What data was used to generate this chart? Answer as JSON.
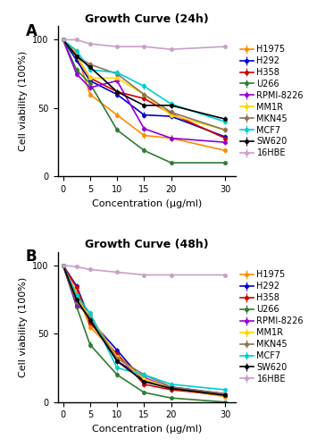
{
  "x": [
    0,
    2.5,
    5,
    10,
    15,
    20,
    30
  ],
  "title_A": "Growth Curve (24h)",
  "title_B": "Growth Curve (48h)",
  "xlabel": "Concentration (μg/ml)",
  "ylabel": "Cell viability (100%)",
  "label_A": "A",
  "label_B": "B",
  "series": [
    {
      "name": "H1975",
      "color": "#FF8C00"
    },
    {
      "name": "H292",
      "color": "#0000CD"
    },
    {
      "name": "H358",
      "color": "#CC0000"
    },
    {
      "name": "U266",
      "color": "#2E7D32"
    },
    {
      "name": "RPMI-8226",
      "color": "#9400D3"
    },
    {
      "name": "MM1R",
      "color": "#FFD700"
    },
    {
      "name": "MKN45",
      "color": "#8B7355"
    },
    {
      "name": "MCF7",
      "color": "#00CED1"
    },
    {
      "name": "SW620",
      "color": "#000000"
    },
    {
      "name": "16HBE",
      "color": "#C8A0C8"
    }
  ],
  "data_24h": {
    "H1975": [
      100,
      90,
      60,
      45,
      30,
      28,
      19
    ],
    "H292": [
      100,
      85,
      70,
      60,
      45,
      44,
      29
    ],
    "H358": [
      100,
      88,
      72,
      62,
      57,
      46,
      28
    ],
    "U266": [
      100,
      78,
      68,
      34,
      19,
      10,
      10
    ],
    "RPMI-8226": [
      100,
      75,
      65,
      70,
      35,
      28,
      25
    ],
    "MM1R": [
      100,
      88,
      72,
      72,
      60,
      45,
      34
    ],
    "MKN45": [
      100,
      88,
      82,
      75,
      60,
      47,
      34
    ],
    "MCF7": [
      100,
      92,
      78,
      76,
      66,
      53,
      40
    ],
    "SW620": [
      100,
      88,
      80,
      62,
      52,
      52,
      42
    ],
    "16HBE": [
      100,
      100,
      97,
      95,
      95,
      93,
      95
    ]
  },
  "data_48h": {
    "H1975": [
      100,
      80,
      55,
      35,
      16,
      10,
      4
    ],
    "H292": [
      100,
      85,
      60,
      38,
      15,
      11,
      6
    ],
    "H358": [
      100,
      84,
      58,
      35,
      13,
      9,
      5
    ],
    "U266": [
      100,
      70,
      42,
      20,
      7,
      3,
      0
    ],
    "RPMI-8226": [
      100,
      71,
      64,
      30,
      18,
      10,
      6
    ],
    "MM1R": [
      100,
      75,
      63,
      33,
      17,
      10,
      5
    ],
    "MKN45": [
      100,
      73,
      62,
      32,
      20,
      11,
      6
    ],
    "MCF7": [
      100,
      78,
      65,
      25,
      20,
      13,
      9
    ],
    "SW620": [
      100,
      75,
      60,
      30,
      15,
      10,
      5
    ],
    "16HBE": [
      100,
      99,
      97,
      95,
      93,
      93,
      93
    ]
  },
  "errors_24h": {
    "H1975": [
      1,
      2,
      2,
      2,
      2,
      2,
      2
    ],
    "H292": [
      1,
      2,
      2,
      2,
      2,
      2,
      2
    ],
    "H358": [
      1,
      2,
      2,
      2,
      2,
      2,
      2
    ],
    "U266": [
      1,
      2,
      2,
      2,
      2,
      1,
      1
    ],
    "RPMI-8226": [
      1,
      2,
      2,
      2,
      2,
      2,
      2
    ],
    "MM1R": [
      1,
      2,
      2,
      2,
      2,
      2,
      2
    ],
    "MKN45": [
      1,
      2,
      2,
      2,
      2,
      2,
      2
    ],
    "MCF7": [
      1,
      2,
      2,
      2,
      2,
      2,
      2
    ],
    "SW620": [
      1,
      2,
      2,
      2,
      2,
      2,
      2
    ],
    "16HBE": [
      1,
      1,
      1,
      1,
      1,
      1,
      1
    ]
  },
  "errors_48h": {
    "H1975": [
      1,
      2,
      2,
      2,
      2,
      2,
      1
    ],
    "H292": [
      1,
      2,
      2,
      2,
      2,
      2,
      1
    ],
    "H358": [
      1,
      2,
      2,
      2,
      2,
      2,
      1
    ],
    "U266": [
      1,
      2,
      2,
      2,
      1,
      1,
      1
    ],
    "RPMI-8226": [
      1,
      2,
      2,
      2,
      2,
      2,
      1
    ],
    "MM1R": [
      1,
      2,
      2,
      2,
      2,
      2,
      1
    ],
    "MKN45": [
      1,
      2,
      2,
      2,
      2,
      2,
      1
    ],
    "MCF7": [
      1,
      2,
      2,
      2,
      2,
      2,
      1
    ],
    "SW620": [
      1,
      2,
      2,
      2,
      2,
      2,
      1
    ],
    "16HBE": [
      1,
      1,
      1,
      1,
      1,
      1,
      1
    ]
  },
  "ylim": [
    0,
    110
  ],
  "yticks": [
    0,
    50,
    100
  ],
  "xticks": [
    0,
    5,
    10,
    15,
    20,
    30
  ],
  "legend_fontsize": 7,
  "axis_fontsize": 8,
  "title_fontsize": 9
}
